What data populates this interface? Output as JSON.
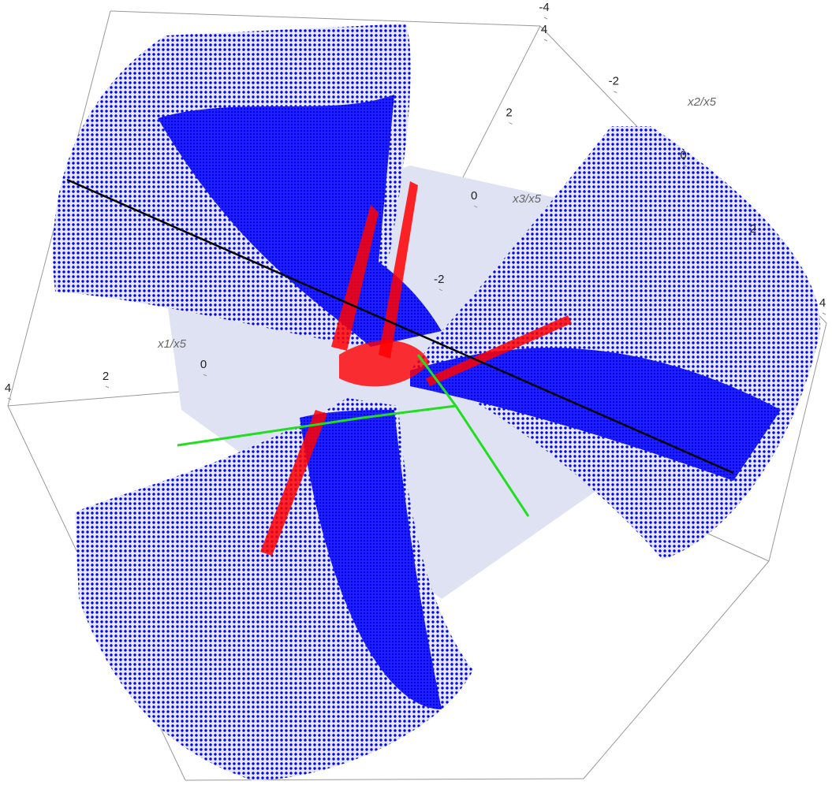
{
  "chart_data": {
    "type": "scatter3d",
    "axes": [
      {
        "label": "x1/x5",
        "lim": [
          -4,
          4
        ],
        "ticks": [
          4,
          2,
          0
        ]
      },
      {
        "label": "x2/x5",
        "lim": [
          -4,
          4
        ],
        "ticks": [
          -4,
          -2,
          0,
          2,
          4
        ]
      },
      {
        "label": "x3/x5",
        "lim": [
          -4,
          4
        ],
        "ticks": [
          4,
          2,
          0,
          -2
        ]
      }
    ],
    "series": [
      {
        "color": "#0000ff"
      },
      {
        "color": "#ff0000"
      }
    ]
  }
}
